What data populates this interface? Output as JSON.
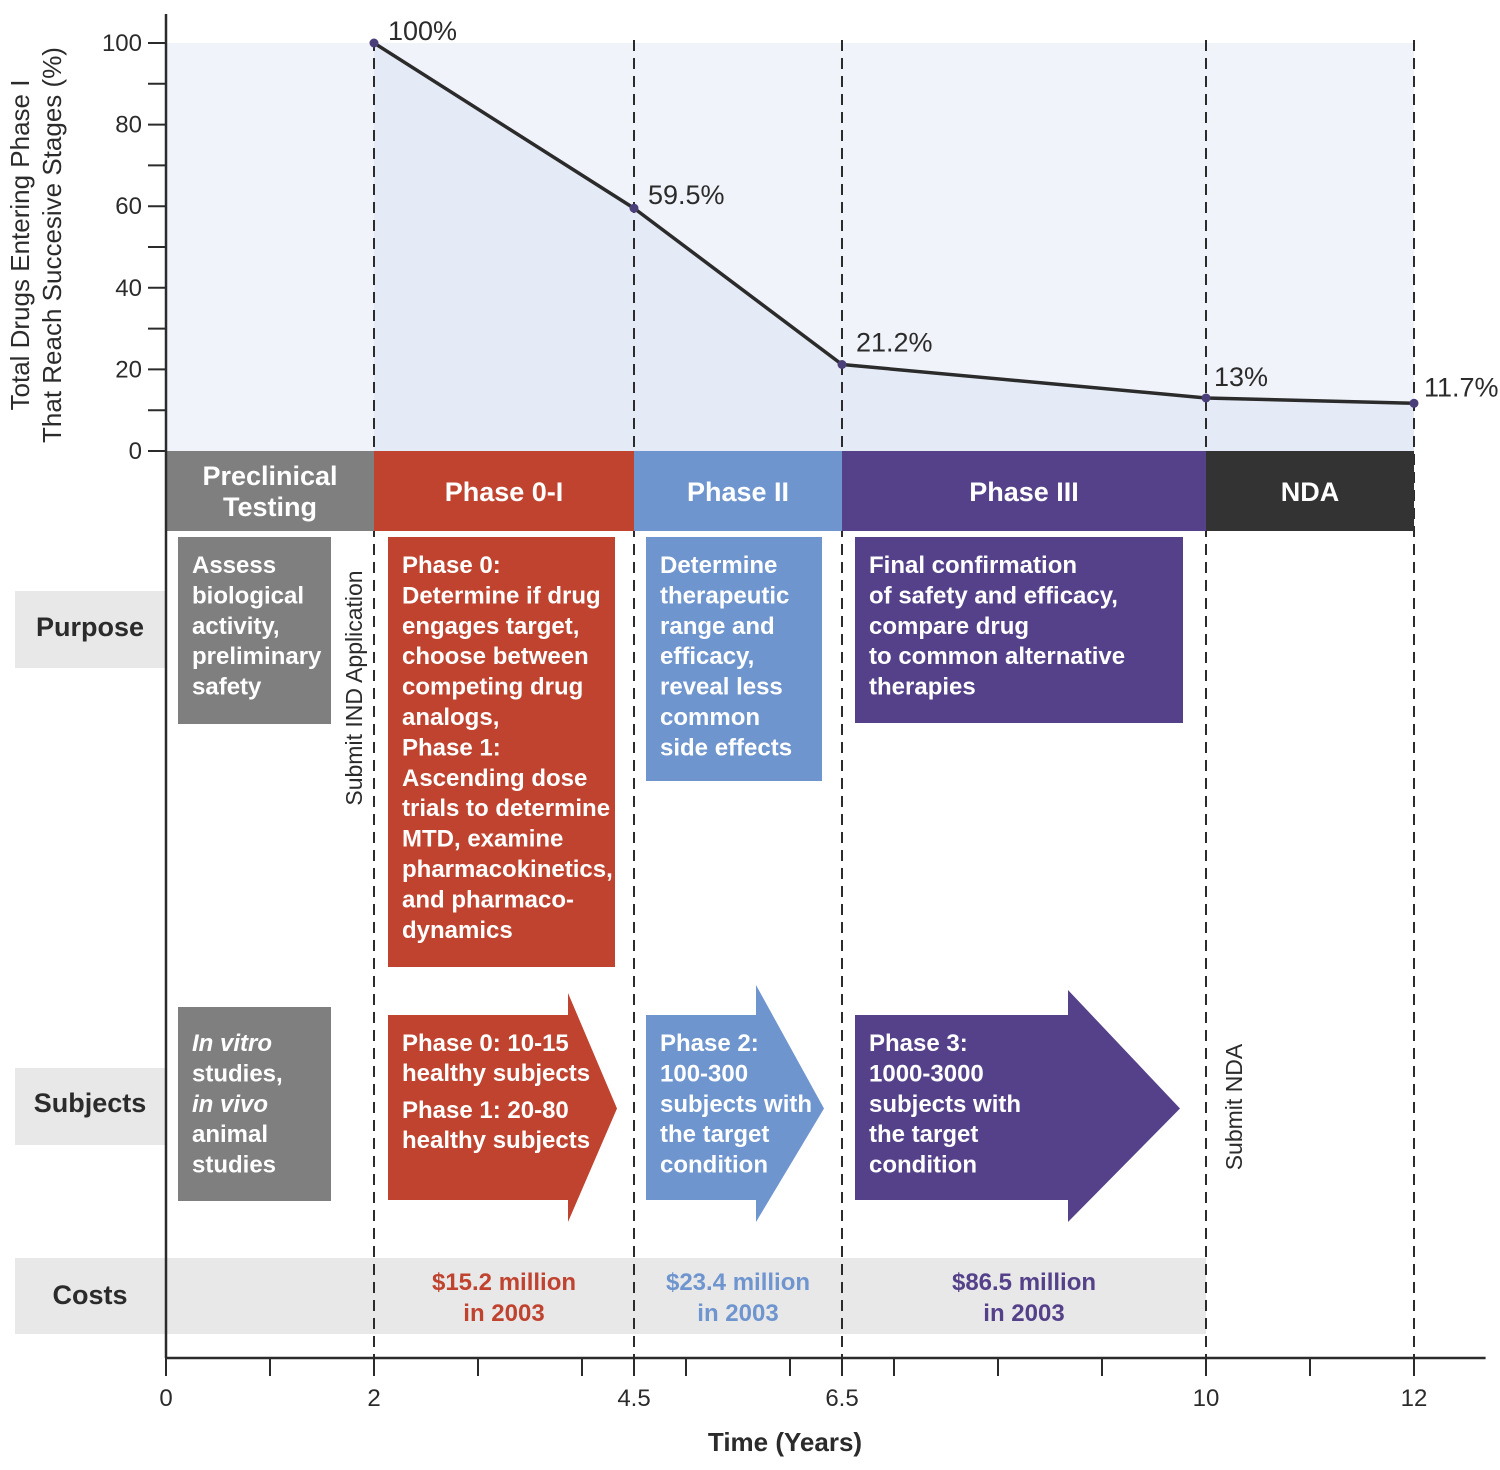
{
  "chart_data": {
    "type": "line",
    "xlabel": "Time (Years)",
    "ylabel_lines": [
      "Total Drugs Entering Phase I",
      "That Reach Succesive Stages (%)"
    ],
    "x_ticks": [
      0,
      2,
      4.5,
      6.5,
      10,
      12
    ],
    "y_ticks": [
      0,
      20,
      40,
      60,
      80,
      100
    ],
    "xlim": [
      0,
      12.4
    ],
    "ylim": [
      0,
      100
    ],
    "points": [
      {
        "x": 2,
        "y": 100,
        "label": "100%"
      },
      {
        "x": 4.5,
        "y": 59.5,
        "label": "59.5%"
      },
      {
        "x": 6.5,
        "y": 21.2,
        "label": "21.2%"
      },
      {
        "x": 10,
        "y": 13,
        "label": "13%"
      },
      {
        "x": 12,
        "y": 11.7,
        "label": "11.7%"
      }
    ],
    "milestones": [
      {
        "x": 2,
        "label": "Submit IND Application"
      },
      {
        "x": 10,
        "label": "Submit NDA"
      }
    ],
    "phases": [
      {
        "name": "preclinical",
        "start": 0,
        "end": 2,
        "label_lines": [
          "Preclinical",
          "Testing"
        ],
        "color": "#7f7f7f"
      },
      {
        "name": "phase-0-1",
        "start": 2,
        "end": 4.5,
        "label_lines": [
          "Phase 0-I"
        ],
        "color": "#c0432f"
      },
      {
        "name": "phase-2",
        "start": 4.5,
        "end": 6.5,
        "label_lines": [
          "Phase II"
        ],
        "color": "#6f95cf"
      },
      {
        "name": "phase-3",
        "start": 6.5,
        "end": 10,
        "label_lines": [
          "Phase III"
        ],
        "color": "#54418a"
      },
      {
        "name": "nda",
        "start": 10,
        "end": 12,
        "label_lines": [
          "NDA"
        ],
        "color": "#333333"
      }
    ],
    "rows": [
      {
        "name": "purpose",
        "label": "Purpose"
      },
      {
        "name": "subjects",
        "label": "Subjects"
      },
      {
        "name": "costs",
        "label": "Costs"
      }
    ],
    "purpose_boxes": [
      {
        "phase": "preclinical",
        "lines": [
          "Assess",
          "biological",
          "activity,",
          "preliminary",
          "safety"
        ]
      },
      {
        "phase": "phase-0-1",
        "lines": [
          "Phase 0:",
          "Determine if drug",
          "engages target,",
          "choose between",
          "competing drug",
          "analogs,",
          "Phase 1:",
          "Ascending dose",
          "trials to determine",
          "MTD, examine",
          "pharmacokinetics,",
          "and pharmaco-",
          "dynamics"
        ]
      },
      {
        "phase": "phase-2",
        "lines": [
          "Determine",
          "therapeutic",
          "range and",
          "efficacy,",
          "reveal less",
          "common",
          "side effects"
        ]
      },
      {
        "phase": "phase-3",
        "lines": [
          "Final confirmation",
          "of safety and efficacy,",
          "compare drug",
          "to common alternative",
          "therapies"
        ]
      }
    ],
    "subject_boxes": [
      {
        "phase": "preclinical",
        "lines": [
          "In vitro",
          "studies,",
          "in vivo",
          "animal",
          "studies"
        ],
        "italic_lines": [
          0,
          2
        ]
      },
      {
        "phase": "phase-0-1",
        "lines": [
          "Phase 0: 10-15",
          "healthy subjects",
          "Phase 1: 20-80",
          "healthy subjects"
        ],
        "italic_lines": []
      },
      {
        "phase": "phase-2",
        "lines": [
          "Phase 2:",
          "100-300",
          "subjects with",
          "the target",
          "condition"
        ],
        "italic_lines": []
      },
      {
        "phase": "phase-3",
        "lines": [
          "Phase 3:",
          "1000-3000",
          "subjects with",
          "the target",
          "condition"
        ],
        "italic_lines": []
      }
    ],
    "costs": [
      {
        "phase": "phase-0-1",
        "lines": [
          "$15.2 million",
          "in 2003"
        ]
      },
      {
        "phase": "phase-2",
        "lines": [
          "$23.4 million",
          "in 2003"
        ]
      },
      {
        "phase": "phase-3",
        "lines": [
          "$86.5 million",
          "in 2003"
        ]
      }
    ],
    "colors": {
      "area_fill": "#e4eaf6",
      "line": "#2b2b2b",
      "point": "#4b3f7a",
      "row_band": "#e8e8e8",
      "axis": "#2b2b2b",
      "text": "#2b2b2b"
    }
  }
}
